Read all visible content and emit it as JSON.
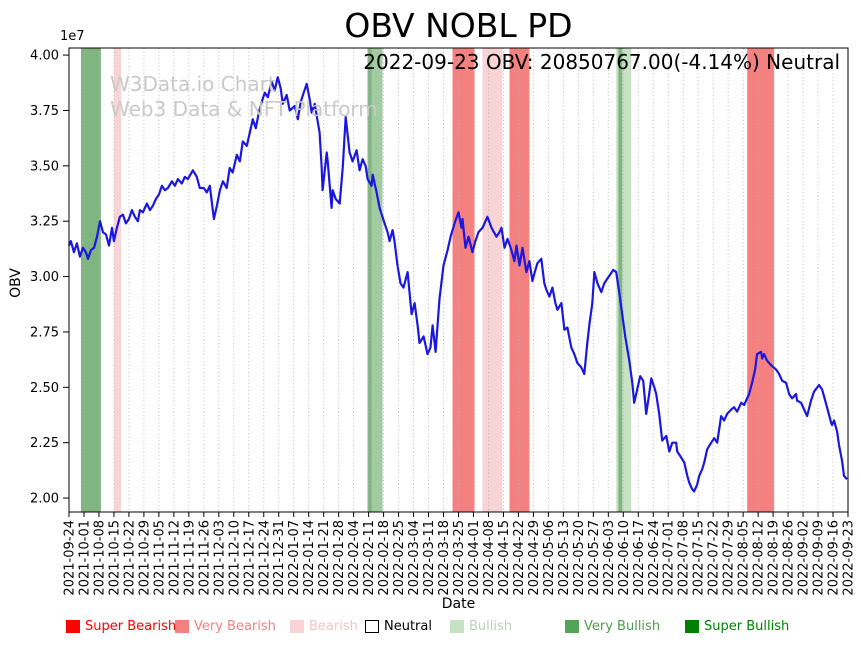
{
  "chart": {
    "title": "OBV NOBL PD",
    "subtitle": "2022-09-23 OBV: 20850767.00(-4.14%) Neutral",
    "watermark_line1": "W3Data.io Chart",
    "watermark_line2": "Web3 Data & NFT Platform",
    "xlabel": "Date",
    "ylabel": "OBV",
    "y_offset_label": "1e7"
  },
  "chart_data": {
    "type": "line",
    "title": "OBV NOBL PD",
    "xlabel": "Date",
    "ylabel": "OBV",
    "y_unit": "1e7",
    "ylim_1e7": [
      1.94,
      4.03
    ],
    "y_ticks": [
      2.0,
      2.25,
      2.5,
      2.75,
      3.0,
      3.25,
      3.5,
      3.75,
      4.0
    ],
    "grid": "vertical-dotted",
    "line_color": "#1a17e0",
    "last_point": {
      "date": "2022-09-23",
      "obv": 20850767.0,
      "change_pct": -4.14,
      "signal": "Neutral"
    },
    "x_tick_labels": [
      "2021-09-24",
      "2021-10-01",
      "2021-10-08",
      "2021-10-15",
      "2021-10-22",
      "2021-10-29",
      "2021-11-05",
      "2021-11-12",
      "2021-11-19",
      "2021-11-26",
      "2021-12-03",
      "2021-12-10",
      "2021-12-17",
      "2021-12-24",
      "2021-12-31",
      "2022-01-07",
      "2022-01-14",
      "2022-01-21",
      "2022-01-28",
      "2022-02-04",
      "2022-02-11",
      "2022-02-18",
      "2022-02-25",
      "2022-03-04",
      "2022-03-11",
      "2022-03-18",
      "2022-03-25",
      "2022-04-01",
      "2022-04-08",
      "2022-04-15",
      "2022-04-22",
      "2022-04-29",
      "2022-05-06",
      "2022-05-13",
      "2022-05-20",
      "2022-05-27",
      "2022-06-03",
      "2022-06-10",
      "2022-06-17",
      "2022-06-24",
      "2022-07-01",
      "2022-07-08",
      "2022-07-15",
      "2022-07-22",
      "2022-07-29",
      "2022-08-05",
      "2022-08-12",
      "2022-08-19",
      "2022-08-26",
      "2022-09-02",
      "2022-09-09",
      "2022-09-16",
      "2022-09-23"
    ],
    "band_colors": {
      "very_bearish": "#f58080",
      "bearish": "#f9d4d6",
      "bullish": "#c8e0c4",
      "bullish_medium": "#a3cba1",
      "very_bullish": "#7fb580"
    },
    "signal_bands": [
      {
        "from_week": 0.8,
        "to_week": 2.13,
        "level": "very_bullish"
      },
      {
        "from_week": 3.0,
        "to_week": 3.47,
        "level": "bearish"
      },
      {
        "from_week": 19.93,
        "to_week": 20.93,
        "level": "bullish_medium"
      },
      {
        "from_week": 19.93,
        "to_week": 20.2,
        "level": "very_bullish"
      },
      {
        "from_week": 25.6,
        "to_week": 27.07,
        "level": "very_bearish"
      },
      {
        "from_week": 27.6,
        "to_week": 28.93,
        "level": "bearish"
      },
      {
        "from_week": 29.4,
        "to_week": 30.73,
        "level": "very_bearish"
      },
      {
        "from_week": 36.53,
        "to_week": 37.53,
        "level": "bullish"
      },
      {
        "from_week": 36.67,
        "to_week": 36.93,
        "level": "very_bullish"
      },
      {
        "from_week": 45.27,
        "to_week": 47.07,
        "level": "very_bearish"
      }
    ],
    "series": [
      {
        "name": "OBV",
        "points": [
          [
            0,
            3.14
          ],
          [
            0.13,
            3.16
          ],
          [
            0.33,
            3.11
          ],
          [
            0.53,
            3.15
          ],
          [
            0.73,
            3.09
          ],
          [
            0.93,
            3.13
          ],
          [
            1.13,
            3.11
          ],
          [
            1.27,
            3.08
          ],
          [
            1.47,
            3.12
          ],
          [
            1.67,
            3.13
          ],
          [
            1.87,
            3.18
          ],
          [
            2.07,
            3.25
          ],
          [
            2.27,
            3.2
          ],
          [
            2.47,
            3.19
          ],
          [
            2.67,
            3.14
          ],
          [
            2.87,
            3.22
          ],
          [
            3.0,
            3.16
          ],
          [
            3.2,
            3.22
          ],
          [
            3.4,
            3.27
          ],
          [
            3.6,
            3.28
          ],
          [
            3.8,
            3.24
          ],
          [
            4.0,
            3.26
          ],
          [
            4.2,
            3.3
          ],
          [
            4.4,
            3.27
          ],
          [
            4.6,
            3.25
          ],
          [
            4.73,
            3.3
          ],
          [
            4.93,
            3.29
          ],
          [
            5.2,
            3.33
          ],
          [
            5.4,
            3.3
          ],
          [
            5.6,
            3.32
          ],
          [
            5.8,
            3.35
          ],
          [
            6.0,
            3.37
          ],
          [
            6.2,
            3.41
          ],
          [
            6.4,
            3.39
          ],
          [
            6.6,
            3.4
          ],
          [
            6.87,
            3.43
          ],
          [
            7.07,
            3.41
          ],
          [
            7.27,
            3.44
          ],
          [
            7.53,
            3.42
          ],
          [
            7.73,
            3.45
          ],
          [
            7.93,
            3.44
          ],
          [
            8.27,
            3.48
          ],
          [
            8.53,
            3.45
          ],
          [
            8.73,
            3.4
          ],
          [
            9.0,
            3.4
          ],
          [
            9.2,
            3.38
          ],
          [
            9.4,
            3.41
          ],
          [
            9.67,
            3.26
          ],
          [
            9.87,
            3.32
          ],
          [
            10.07,
            3.39
          ],
          [
            10.27,
            3.43
          ],
          [
            10.53,
            3.4
          ],
          [
            10.73,
            3.49
          ],
          [
            10.93,
            3.47
          ],
          [
            11.2,
            3.55
          ],
          [
            11.4,
            3.52
          ],
          [
            11.6,
            3.61
          ],
          [
            11.87,
            3.59
          ],
          [
            12.07,
            3.65
          ],
          [
            12.27,
            3.71
          ],
          [
            12.47,
            3.67
          ],
          [
            12.67,
            3.74
          ],
          [
            12.87,
            3.79
          ],
          [
            13.07,
            3.83
          ],
          [
            13.27,
            3.81
          ],
          [
            13.53,
            3.88
          ],
          [
            13.73,
            3.84
          ],
          [
            13.93,
            3.9
          ],
          [
            14.13,
            3.85
          ],
          [
            14.27,
            3.78
          ],
          [
            14.53,
            3.82
          ],
          [
            14.73,
            3.75
          ],
          [
            15.07,
            3.77
          ],
          [
            15.27,
            3.71
          ],
          [
            15.47,
            3.79
          ],
          [
            15.67,
            3.83
          ],
          [
            15.87,
            3.87
          ],
          [
            16.07,
            3.8
          ],
          [
            16.2,
            3.74
          ],
          [
            16.4,
            3.78
          ],
          [
            16.6,
            3.7
          ],
          [
            16.73,
            3.65
          ],
          [
            16.87,
            3.49
          ],
          [
            16.93,
            3.39
          ],
          [
            17.2,
            3.56
          ],
          [
            17.27,
            3.52
          ],
          [
            17.53,
            3.31
          ],
          [
            17.6,
            3.39
          ],
          [
            17.8,
            3.35
          ],
          [
            18.07,
            3.33
          ],
          [
            18.27,
            3.49
          ],
          [
            18.47,
            3.72
          ],
          [
            18.73,
            3.56
          ],
          [
            18.93,
            3.52
          ],
          [
            19.2,
            3.57
          ],
          [
            19.4,
            3.48
          ],
          [
            19.6,
            3.53
          ],
          [
            19.8,
            3.5
          ],
          [
            19.93,
            3.44
          ],
          [
            20.2,
            3.41
          ],
          [
            20.27,
            3.46
          ],
          [
            20.53,
            3.38
          ],
          [
            20.73,
            3.31
          ],
          [
            21.07,
            3.24
          ],
          [
            21.27,
            3.2
          ],
          [
            21.4,
            3.16
          ],
          [
            21.6,
            3.21
          ],
          [
            21.73,
            3.16
          ],
          [
            21.93,
            3.05
          ],
          [
            22.13,
            2.97
          ],
          [
            22.33,
            2.95
          ],
          [
            22.6,
            3.02
          ],
          [
            22.87,
            2.83
          ],
          [
            23.07,
            2.88
          ],
          [
            23.27,
            2.78
          ],
          [
            23.4,
            2.7
          ],
          [
            23.67,
            2.73
          ],
          [
            23.93,
            2.65
          ],
          [
            24.13,
            2.68
          ],
          [
            24.27,
            2.78
          ],
          [
            24.47,
            2.66
          ],
          [
            24.73,
            2.9
          ],
          [
            25.0,
            3.05
          ],
          [
            25.27,
            3.12
          ],
          [
            25.47,
            3.18
          ],
          [
            25.73,
            3.24
          ],
          [
            26.0,
            3.29
          ],
          [
            26.2,
            3.22
          ],
          [
            26.27,
            3.26
          ],
          [
            26.47,
            3.13
          ],
          [
            26.67,
            3.18
          ],
          [
            26.93,
            3.11
          ],
          [
            27.13,
            3.16
          ],
          [
            27.33,
            3.2
          ],
          [
            27.6,
            3.22
          ],
          [
            27.93,
            3.27
          ],
          [
            28.2,
            3.22
          ],
          [
            28.53,
            3.18
          ],
          [
            28.73,
            3.2
          ],
          [
            28.87,
            3.22
          ],
          [
            29.07,
            3.13
          ],
          [
            29.27,
            3.17
          ],
          [
            29.53,
            3.12
          ],
          [
            29.73,
            3.07
          ],
          [
            29.87,
            3.14
          ],
          [
            30.07,
            3.05
          ],
          [
            30.27,
            3.13
          ],
          [
            30.53,
            3.02
          ],
          [
            30.73,
            3.07
          ],
          [
            30.93,
            2.98
          ],
          [
            31.13,
            3.03
          ],
          [
            31.27,
            3.06
          ],
          [
            31.53,
            3.08
          ],
          [
            31.73,
            2.97
          ],
          [
            31.87,
            2.94
          ],
          [
            32.07,
            2.91
          ],
          [
            32.27,
            2.95
          ],
          [
            32.47,
            2.88
          ],
          [
            32.6,
            2.85
          ],
          [
            32.87,
            2.88
          ],
          [
            33.07,
            2.76
          ],
          [
            33.27,
            2.77
          ],
          [
            33.53,
            2.68
          ],
          [
            33.73,
            2.65
          ],
          [
            33.93,
            2.61
          ],
          [
            34.2,
            2.59
          ],
          [
            34.4,
            2.56
          ],
          [
            34.6,
            2.7
          ],
          [
            34.73,
            2.78
          ],
          [
            34.93,
            2.88
          ],
          [
            35.07,
            3.02
          ],
          [
            35.27,
            2.97
          ],
          [
            35.53,
            2.93
          ],
          [
            35.73,
            2.97
          ],
          [
            35.93,
            2.99
          ],
          [
            36.13,
            3.01
          ],
          [
            36.33,
            3.03
          ],
          [
            36.53,
            3.02
          ],
          [
            36.73,
            2.93
          ],
          [
            36.93,
            2.83
          ],
          [
            37.13,
            2.73
          ],
          [
            37.4,
            2.62
          ],
          [
            37.6,
            2.52
          ],
          [
            37.73,
            2.43
          ],
          [
            37.93,
            2.49
          ],
          [
            38.13,
            2.55
          ],
          [
            38.33,
            2.53
          ],
          [
            38.53,
            2.38
          ],
          [
            38.73,
            2.47
          ],
          [
            38.87,
            2.54
          ],
          [
            39.07,
            2.5
          ],
          [
            39.2,
            2.47
          ],
          [
            39.4,
            2.38
          ],
          [
            39.6,
            2.26
          ],
          [
            39.87,
            2.28
          ],
          [
            40.07,
            2.21
          ],
          [
            40.27,
            2.25
          ],
          [
            40.53,
            2.25
          ],
          [
            40.6,
            2.21
          ],
          [
            40.8,
            2.19
          ],
          [
            41.07,
            2.16
          ],
          [
            41.27,
            2.1
          ],
          [
            41.4,
            2.07
          ],
          [
            41.6,
            2.04
          ],
          [
            41.73,
            2.03
          ],
          [
            41.93,
            2.06
          ],
          [
            42.07,
            2.1
          ],
          [
            42.27,
            2.13
          ],
          [
            42.4,
            2.16
          ],
          [
            42.6,
            2.22
          ],
          [
            42.87,
            2.25
          ],
          [
            43.07,
            2.27
          ],
          [
            43.27,
            2.25
          ],
          [
            43.53,
            2.37
          ],
          [
            43.73,
            2.35
          ],
          [
            43.93,
            2.38
          ],
          [
            44.2,
            2.4
          ],
          [
            44.4,
            2.41
          ],
          [
            44.6,
            2.39
          ],
          [
            44.87,
            2.43
          ],
          [
            45.07,
            2.42
          ],
          [
            45.2,
            2.44
          ],
          [
            45.4,
            2.47
          ],
          [
            45.6,
            2.52
          ],
          [
            45.8,
            2.58
          ],
          [
            45.93,
            2.65
          ],
          [
            46.2,
            2.66
          ],
          [
            46.27,
            2.63
          ],
          [
            46.4,
            2.65
          ],
          [
            46.6,
            2.62
          ],
          [
            46.87,
            2.6
          ],
          [
            47.2,
            2.58
          ],
          [
            47.4,
            2.56
          ],
          [
            47.6,
            2.53
          ],
          [
            47.87,
            2.52
          ],
          [
            48.07,
            2.47
          ],
          [
            48.27,
            2.45
          ],
          [
            48.53,
            2.47
          ],
          [
            48.6,
            2.44
          ],
          [
            48.87,
            2.43
          ],
          [
            49.07,
            2.4
          ],
          [
            49.2,
            2.38
          ],
          [
            49.27,
            2.37
          ],
          [
            49.53,
            2.44
          ],
          [
            49.73,
            2.48
          ],
          [
            50.07,
            2.51
          ],
          [
            50.27,
            2.49
          ],
          [
            50.4,
            2.46
          ],
          [
            50.6,
            2.41
          ],
          [
            50.87,
            2.34
          ],
          [
            50.93,
            2.33
          ],
          [
            51.07,
            2.35
          ],
          [
            51.27,
            2.3
          ],
          [
            51.4,
            2.24
          ],
          [
            51.6,
            2.17
          ],
          [
            51.73,
            2.1
          ],
          [
            51.93,
            2.085
          ]
        ]
      }
    ],
    "legend": [
      {
        "label": "Super Bearish",
        "color": "#ff0000",
        "text_color": "#ff0000",
        "border": "none"
      },
      {
        "label": "Very Bearish",
        "color": "#f58080",
        "text_color": "#f58080",
        "border": "none"
      },
      {
        "label": "Bearish",
        "color": "#f9d4d6",
        "text_color": "#f6c4c7",
        "border": "none"
      },
      {
        "label": "Neutral",
        "color": "#ffffff",
        "text_color": "#000000",
        "border": "#000000"
      },
      {
        "label": "Bullish",
        "color": "#c8e0c4",
        "text_color": "#b5d6b2",
        "border": "none"
      },
      {
        "label": "Very Bullish",
        "color": "#55a355",
        "text_color": "#4e9e4b",
        "border": "none"
      },
      {
        "label": "Super Bullish",
        "color": "#007f00",
        "text_color": "#007f00",
        "border": "none"
      }
    ]
  }
}
